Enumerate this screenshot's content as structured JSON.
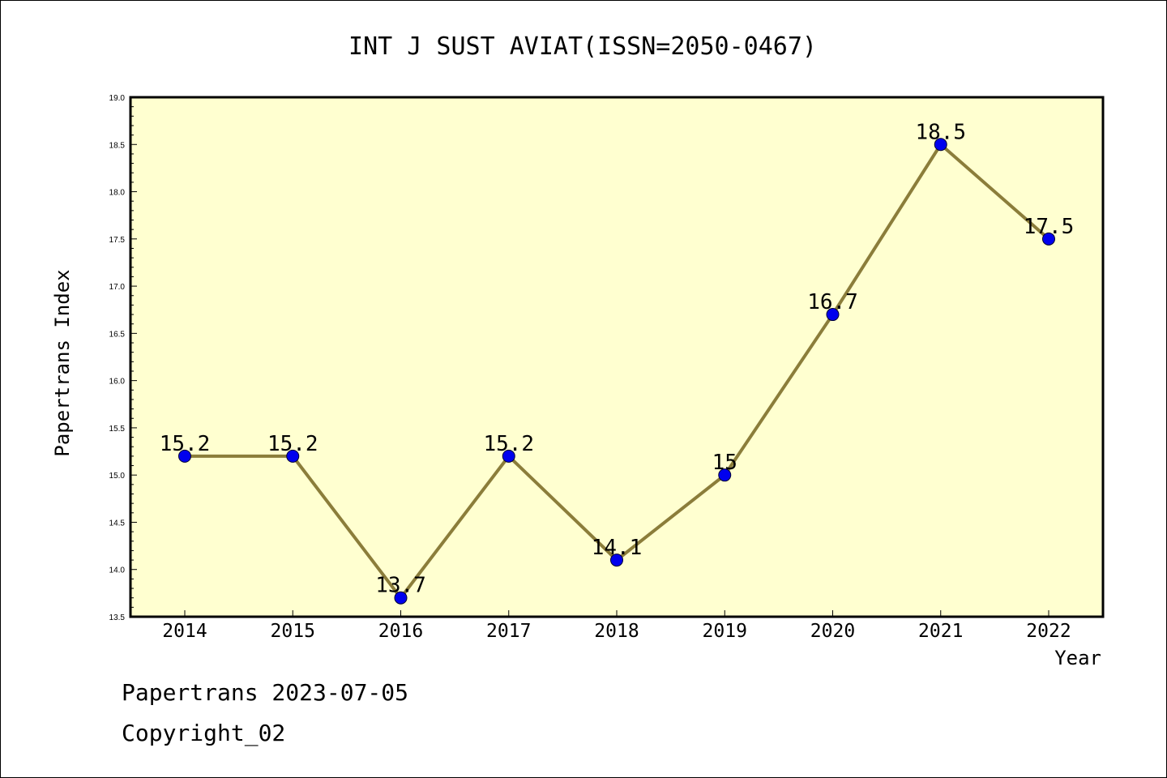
{
  "chart_data": {
    "type": "line",
    "title": "INT J SUST AVIAT(ISSN=2050-0467)",
    "xlabel": "Year",
    "ylabel": "Papertrans Index",
    "categories": [
      "2014",
      "2015",
      "2016",
      "2017",
      "2018",
      "2019",
      "2020",
      "2021",
      "2022"
    ],
    "values": [
      15.2,
      15.2,
      13.7,
      15.2,
      14.1,
      15.0,
      16.7,
      18.5,
      17.5
    ],
    "data_labels": [
      "15.2",
      "15.2",
      "13.7",
      "15.2",
      "14.1",
      "15",
      "16.7",
      "18.5",
      "17.5"
    ],
    "ylim": [
      13.5,
      19.0
    ],
    "yticks": [
      "13.5",
      "14.0",
      "14.5",
      "15.0",
      "15.5",
      "16.0",
      "16.5",
      "17.0",
      "17.5",
      "18.0",
      "18.5",
      "19.0"
    ],
    "grid": false,
    "legend": "none",
    "colors": {
      "plot_background": "#ffffd0",
      "line": "#8b7d3a",
      "marker": "#0000ee"
    }
  },
  "footer": {
    "line1": "Papertrans 2023-07-05",
    "line2": "Copyright_02"
  }
}
